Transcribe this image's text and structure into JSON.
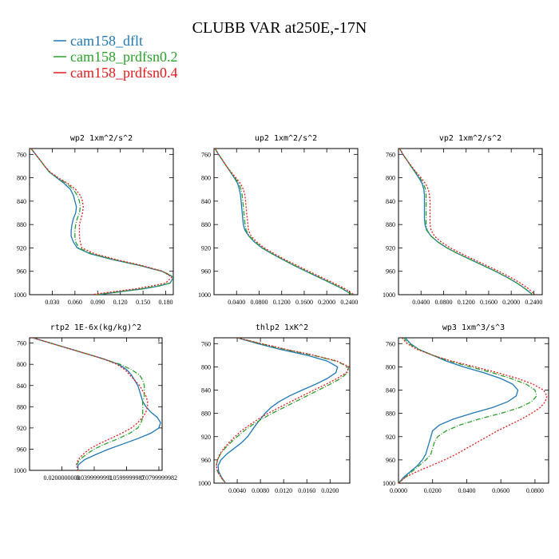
{
  "figure_title": "CLUBB VAR at250E,-17N",
  "legend": [
    {
      "label": "cam158_dflt",
      "color": "#1f77b4"
    },
    {
      "label": "cam158_prdfsn0.2",
      "color": "#2ca02c"
    },
    {
      "label": "cam158_prdfsn0.4",
      "color": "#e31a1c"
    }
  ],
  "chart_data": [
    {
      "type": "line",
      "title": "wp2  1xm^2/s^2",
      "y_ticks": [
        "760",
        "800",
        "840",
        "880",
        "920",
        "960",
        "1000"
      ],
      "x_ticks": [
        "0.030",
        "0.060",
        "0.090",
        "0.120",
        "0.150",
        "0.180"
      ],
      "xlim": [
        0,
        0.19
      ],
      "ylim": [
        1000,
        750
      ],
      "y_reversed": true,
      "y": [
        750,
        760,
        770,
        780,
        790,
        800,
        810,
        820,
        830,
        840,
        850,
        860,
        870,
        880,
        890,
        900,
        910,
        920,
        930,
        940,
        950,
        960,
        970,
        980,
        985,
        990,
        995,
        1000
      ],
      "series": [
        {
          "name": "cam158_dflt",
          "color": "#1f77b4",
          "dash": "",
          "x": [
            0.002,
            0.008,
            0.014,
            0.02,
            0.026,
            0.036,
            0.046,
            0.054,
            0.058,
            0.06,
            0.062,
            0.061,
            0.058,
            0.056,
            0.055,
            0.055,
            0.058,
            0.063,
            0.08,
            0.11,
            0.145,
            0.175,
            0.19,
            0.186,
            0.172,
            0.15,
            0.12,
            0.09
          ]
        },
        {
          "name": "cam158_prdfsn0.2",
          "color": "#2ca02c",
          "dash": "6,2,1,2",
          "x": [
            0.002,
            0.008,
            0.014,
            0.02,
            0.026,
            0.037,
            0.049,
            0.058,
            0.063,
            0.066,
            0.067,
            0.066,
            0.063,
            0.061,
            0.06,
            0.06,
            0.061,
            0.065,
            0.082,
            0.112,
            0.146,
            0.176,
            0.191,
            0.186,
            0.17,
            0.148,
            0.118,
            0.088
          ]
        },
        {
          "name": "cam158_prdfsn0.4",
          "color": "#e31a1c",
          "dash": "2,2",
          "x": [
            0.002,
            0.008,
            0.014,
            0.02,
            0.027,
            0.038,
            0.051,
            0.061,
            0.067,
            0.07,
            0.071,
            0.07,
            0.068,
            0.066,
            0.066,
            0.066,
            0.067,
            0.069,
            0.086,
            0.115,
            0.148,
            0.176,
            0.188,
            0.18,
            0.162,
            0.14,
            0.11,
            0.082
          ]
        }
      ]
    },
    {
      "type": "line",
      "title": "up2  1xm^2/s^2",
      "y_ticks": [
        "760",
        "800",
        "840",
        "880",
        "920",
        "960",
        "1000"
      ],
      "x_ticks": [
        "0.0400",
        "0.0800",
        "0.1200",
        "0.1600",
        "0.2000",
        "0.2400"
      ],
      "xlim": [
        0,
        0.255
      ],
      "ylim": [
        1000,
        750
      ],
      "y_reversed": true,
      "y": [
        750,
        760,
        770,
        780,
        790,
        800,
        810,
        820,
        830,
        840,
        850,
        860,
        870,
        880,
        890,
        900,
        910,
        920,
        930,
        940,
        950,
        960,
        970,
        980,
        990,
        1000
      ],
      "series": [
        {
          "name": "cam158_dflt",
          "color": "#1f77b4",
          "dash": "",
          "x": [
            0.002,
            0.008,
            0.015,
            0.022,
            0.029,
            0.036,
            0.042,
            0.045,
            0.047,
            0.048,
            0.049,
            0.05,
            0.051,
            0.052,
            0.055,
            0.062,
            0.072,
            0.085,
            0.103,
            0.122,
            0.142,
            0.163,
            0.185,
            0.207,
            0.228,
            0.245
          ]
        },
        {
          "name": "cam158_prdfsn0.2",
          "color": "#2ca02c",
          "dash": "6,2,1,2",
          "x": [
            0.002,
            0.008,
            0.015,
            0.022,
            0.029,
            0.037,
            0.044,
            0.048,
            0.05,
            0.051,
            0.052,
            0.053,
            0.054,
            0.055,
            0.057,
            0.063,
            0.073,
            0.086,
            0.104,
            0.123,
            0.143,
            0.164,
            0.186,
            0.208,
            0.229,
            0.245
          ]
        },
        {
          "name": "cam158_prdfsn0.4",
          "color": "#e31a1c",
          "dash": "2,2",
          "x": [
            0.002,
            0.008,
            0.015,
            0.022,
            0.03,
            0.039,
            0.047,
            0.052,
            0.055,
            0.056,
            0.057,
            0.058,
            0.059,
            0.06,
            0.061,
            0.066,
            0.076,
            0.089,
            0.107,
            0.126,
            0.147,
            0.168,
            0.19,
            0.212,
            0.233,
            0.248
          ]
        }
      ]
    },
    {
      "type": "line",
      "title": "vp2  1xm^2/s^2",
      "y_ticks": [
        "760",
        "800",
        "840",
        "880",
        "920",
        "960",
        "1000"
      ],
      "x_ticks": [
        "0.0400",
        "0.0800",
        "0.1200",
        "0.1600",
        "0.2000",
        "0.2400"
      ],
      "xlim": [
        0,
        0.255
      ],
      "ylim": [
        1000,
        750
      ],
      "y_reversed": true,
      "y": [
        750,
        760,
        770,
        780,
        790,
        800,
        810,
        820,
        830,
        840,
        850,
        860,
        870,
        880,
        890,
        900,
        910,
        920,
        930,
        940,
        950,
        960,
        970,
        980,
        990,
        1000
      ],
      "series": [
        {
          "name": "cam158_dflt",
          "color": "#1f77b4",
          "dash": "",
          "x": [
            0.002,
            0.008,
            0.015,
            0.022,
            0.029,
            0.036,
            0.042,
            0.045,
            0.046,
            0.046,
            0.046,
            0.046,
            0.046,
            0.047,
            0.05,
            0.058,
            0.07,
            0.086,
            0.106,
            0.128,
            0.15,
            0.172,
            0.192,
            0.21,
            0.225,
            0.238
          ]
        },
        {
          "name": "cam158_prdfsn0.2",
          "color": "#2ca02c",
          "dash": "6,2,1,2",
          "x": [
            0.002,
            0.008,
            0.015,
            0.022,
            0.03,
            0.038,
            0.044,
            0.048,
            0.049,
            0.049,
            0.049,
            0.049,
            0.049,
            0.049,
            0.051,
            0.058,
            0.07,
            0.086,
            0.106,
            0.128,
            0.15,
            0.172,
            0.192,
            0.21,
            0.225,
            0.238
          ]
        },
        {
          "name": "cam158_prdfsn0.4",
          "color": "#e31a1c",
          "dash": "2,2",
          "x": [
            0.002,
            0.008,
            0.015,
            0.023,
            0.031,
            0.04,
            0.048,
            0.053,
            0.055,
            0.056,
            0.056,
            0.056,
            0.056,
            0.056,
            0.058,
            0.064,
            0.076,
            0.092,
            0.112,
            0.134,
            0.156,
            0.178,
            0.198,
            0.216,
            0.231,
            0.242
          ]
        }
      ]
    },
    {
      "type": "line",
      "title": "rtp2  1E-6x(kg/kg)^2",
      "y_ticks": [
        "760",
        "800",
        "840",
        "880",
        "920",
        "960",
        "1000"
      ],
      "x_ticks": [
        "0.0200000000",
        "0.0399999991",
        "0.0599999987",
        "0.0799999982"
      ],
      "xlim": [
        0,
        0.082
      ],
      "ylim": [
        1000,
        750
      ],
      "y_reversed": true,
      "y": [
        750,
        760,
        770,
        780,
        790,
        800,
        810,
        820,
        830,
        840,
        850,
        860,
        870,
        880,
        890,
        900,
        910,
        920,
        930,
        940,
        950,
        960,
        970,
        980,
        990,
        1000
      ],
      "series": [
        {
          "name": "cam158_dflt",
          "color": "#1f77b4",
          "dash": "",
          "x": [
            0.002,
            0.013,
            0.024,
            0.035,
            0.046,
            0.055,
            0.06,
            0.063,
            0.065,
            0.067,
            0.068,
            0.069,
            0.07,
            0.072,
            0.075,
            0.079,
            0.081,
            0.08,
            0.075,
            0.067,
            0.058,
            0.049,
            0.041,
            0.034,
            0.03,
            0.03
          ]
        },
        {
          "name": "cam158_prdfsn0.2",
          "color": "#2ca02c",
          "dash": "6,2,1,2",
          "x": [
            0.002,
            0.013,
            0.024,
            0.035,
            0.046,
            0.056,
            0.063,
            0.068,
            0.07,
            0.071,
            0.071,
            0.071,
            0.07,
            0.07,
            0.07,
            0.07,
            0.069,
            0.067,
            0.062,
            0.055,
            0.047,
            0.04,
            0.035,
            0.031,
            0.029,
            0.03
          ]
        },
        {
          "name": "cam158_prdfsn0.4",
          "color": "#e31a1c",
          "dash": "2,2",
          "x": [
            0.002,
            0.013,
            0.024,
            0.035,
            0.046,
            0.054,
            0.059,
            0.062,
            0.065,
            0.068,
            0.07,
            0.072,
            0.073,
            0.073,
            0.072,
            0.07,
            0.067,
            0.063,
            0.057,
            0.05,
            0.043,
            0.037,
            0.033,
            0.03,
            0.029,
            0.03
          ]
        }
      ]
    },
    {
      "type": "line",
      "title": "thlp2  1xK^2",
      "y_ticks": [
        "760",
        "800",
        "840",
        "880",
        "920",
        "960",
        "1000"
      ],
      "x_ticks": [
        "0.0040",
        "0.0080",
        "0.0120",
        "0.0160",
        "0.0200"
      ],
      "xlim": [
        0,
        0.0234
      ],
      "ylim": [
        1000,
        750
      ],
      "y_reversed": true,
      "y": [
        750,
        760,
        770,
        780,
        790,
        800,
        810,
        820,
        830,
        840,
        850,
        860,
        870,
        880,
        890,
        900,
        910,
        920,
        930,
        940,
        950,
        960,
        970,
        980,
        990,
        1000
      ],
      "series": [
        {
          "name": "cam158_dflt",
          "color": "#1f77b4",
          "dash": "",
          "x": [
            0.004,
            0.0075,
            0.0115,
            0.016,
            0.0195,
            0.0213,
            0.021,
            0.0195,
            0.0175,
            0.0152,
            0.013,
            0.0112,
            0.0098,
            0.0088,
            0.008,
            0.0072,
            0.0065,
            0.0058,
            0.0048,
            0.0035,
            0.0022,
            0.0012,
            0.0007,
            0.0008,
            0.0013,
            0.002
          ]
        },
        {
          "name": "cam158_prdfsn0.2",
          "color": "#2ca02c",
          "dash": "6,2,1,2",
          "x": [
            0.004,
            0.008,
            0.0122,
            0.017,
            0.021,
            0.0232,
            0.023,
            0.0218,
            0.02,
            0.018,
            0.016,
            0.014,
            0.012,
            0.01,
            0.0082,
            0.0066,
            0.0052,
            0.004,
            0.0029,
            0.0019,
            0.0011,
            0.0006,
            0.0004,
            0.0006,
            0.0012,
            0.002
          ]
        },
        {
          "name": "cam158_prdfsn0.4",
          "color": "#e31a1c",
          "dash": "2,2",
          "x": [
            0.004,
            0.0082,
            0.0125,
            0.0172,
            0.0212,
            0.0233,
            0.0228,
            0.0212,
            0.0193,
            0.0172,
            0.0152,
            0.0132,
            0.0112,
            0.0093,
            0.0076,
            0.0061,
            0.0047,
            0.0036,
            0.0026,
            0.0017,
            0.001,
            0.0006,
            0.0004,
            0.0006,
            0.0012,
            0.002
          ]
        }
      ]
    },
    {
      "type": "line",
      "title": "wp3  1xm^3/s^3",
      "y_ticks": [
        "760",
        "800",
        "840",
        "880",
        "920",
        "960",
        "1000"
      ],
      "x_ticks": [
        "0.0000",
        "0.0200",
        "0.0400",
        "0.0600",
        "0.0800"
      ],
      "xlim": [
        0,
        0.088
      ],
      "ylim": [
        1000,
        750
      ],
      "y_reversed": true,
      "y": [
        750,
        760,
        770,
        780,
        790,
        800,
        810,
        820,
        830,
        840,
        850,
        860,
        870,
        880,
        890,
        900,
        910,
        920,
        930,
        940,
        950,
        960,
        970,
        980,
        990,
        1000
      ],
      "series": [
        {
          "name": "cam158_dflt",
          "color": "#1f77b4",
          "dash": "",
          "x": [
            0.004,
            0.007,
            0.012,
            0.02,
            0.028,
            0.038,
            0.05,
            0.06,
            0.067,
            0.07,
            0.069,
            0.064,
            0.055,
            0.043,
            0.032,
            0.024,
            0.02,
            0.019,
            0.018,
            0.017,
            0.016,
            0.014,
            0.011,
            0.007,
            0.003,
            0.0
          ]
        },
        {
          "name": "cam158_prdfsn0.2",
          "color": "#2ca02c",
          "dash": "6,2,1,2",
          "x": [
            0.003,
            0.006,
            0.012,
            0.02,
            0.03,
            0.042,
            0.055,
            0.066,
            0.075,
            0.08,
            0.081,
            0.078,
            0.071,
            0.06,
            0.047,
            0.036,
            0.028,
            0.023,
            0.021,
            0.02,
            0.019,
            0.016,
            0.012,
            0.008,
            0.004,
            0.0
          ]
        },
        {
          "name": "cam158_prdfsn0.4",
          "color": "#e31a1c",
          "dash": "2,2",
          "x": [
            0.002,
            0.005,
            0.011,
            0.02,
            0.031,
            0.045,
            0.058,
            0.07,
            0.079,
            0.085,
            0.087,
            0.086,
            0.083,
            0.078,
            0.072,
            0.065,
            0.058,
            0.052,
            0.046,
            0.04,
            0.034,
            0.027,
            0.019,
            0.011,
            0.004,
            0.0
          ]
        }
      ]
    }
  ]
}
